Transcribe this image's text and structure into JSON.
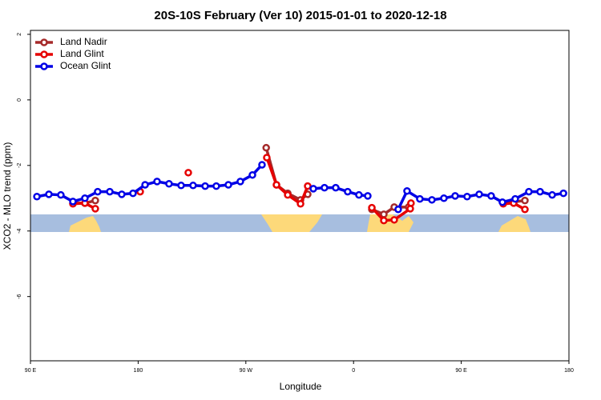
{
  "chart_data": {
    "type": "line",
    "title": "20S-10S February (Ver 10)   2015-01-01 to 2020-12-18",
    "xlabel": "Longitude",
    "ylabel": "XCO2 - MLO trend (ppm)",
    "xlim": [
      90,
      540
    ],
    "xticks": [
      {
        "value": 90,
        "label": "90 E"
      },
      {
        "value": 180,
        "label": "180"
      },
      {
        "value": 270,
        "label": "90 W"
      },
      {
        "value": 360,
        "label": "0"
      },
      {
        "value": 450,
        "label": "90 E"
      },
      {
        "value": 540,
        "label": "180"
      }
    ],
    "ylim": [
      -7.96,
      2.12
    ],
    "yticks": [
      -6,
      -4,
      -2,
      0,
      2
    ],
    "legend": "upper left",
    "series": [
      {
        "name": "Land Nadir",
        "color": "#a52a2a",
        "x": [
          125.5,
          135.5,
          144.2,
          null,
          287,
          295.6,
          305,
          315.7,
          321.7,
          null,
          375.3,
          385.3,
          394,
          406,
          null,
          485.1,
          503.2
        ],
        "values": [
          -3.15,
          -3.15,
          -3.07,
          null,
          -1.46,
          -2.59,
          -2.85,
          -3.05,
          -2.88,
          null,
          -3.34,
          -3.49,
          -3.27,
          -3.27,
          null,
          -3.15,
          -3.07
        ]
      },
      {
        "name": "Land Glint",
        "color": "#e60000",
        "x": [
          125.5,
          135.5,
          144.2,
          null,
          181.7,
          null,
          221.9,
          null,
          287.5,
          295.6,
          305,
          315.7,
          321.7,
          null,
          375.3,
          385.3,
          394,
          407.4,
          408,
          null,
          485.1,
          493.8,
          503.2
        ],
        "values": [
          -3.17,
          -3.15,
          -3.32,
          null,
          -2.8,
          null,
          -2.22,
          null,
          -1.76,
          -2.59,
          -2.9,
          -3.17,
          -2.63,
          null,
          -3.29,
          -3.68,
          -3.66,
          -3.32,
          -3.15,
          null,
          -3.17,
          -3.15,
          -3.34
        ]
      },
      {
        "name": "Ocean Glint",
        "color": "#0000e6",
        "x": [
          95.4,
          105.4,
          115.4,
          125.5,
          135.5,
          146.2,
          156.3,
          166.3,
          175.7,
          185.8,
          195.8,
          205.8,
          215.9,
          225.9,
          236,
          245.3,
          255.4,
          265.4,
          275.5,
          283.5,
          null,
          326.4,
          335.7,
          345.1,
          355.1,
          364.5,
          371.9,
          null,
          397.3,
          404.7,
          415.4,
          425.5,
          435.5,
          444.9,
          454.9,
          465,
          475,
          484.4,
          495.1,
          506.5,
          515.9,
          526,
          535.4
        ],
        "values": [
          -2.95,
          -2.88,
          -2.9,
          -3.1,
          -3.0,
          -2.8,
          -2.8,
          -2.88,
          -2.85,
          -2.59,
          -2.49,
          -2.56,
          -2.61,
          -2.61,
          -2.63,
          -2.63,
          -2.59,
          -2.49,
          -2.29,
          -1.98,
          null,
          -2.71,
          -2.68,
          -2.68,
          -2.8,
          -2.9,
          -2.93,
          null,
          -3.34,
          -2.78,
          -3.02,
          -3.05,
          -3.0,
          -2.93,
          -2.95,
          -2.88,
          -2.93,
          -3.12,
          -3.02,
          -2.8,
          -2.8,
          -2.9,
          -2.85
        ]
      }
    ]
  }
}
